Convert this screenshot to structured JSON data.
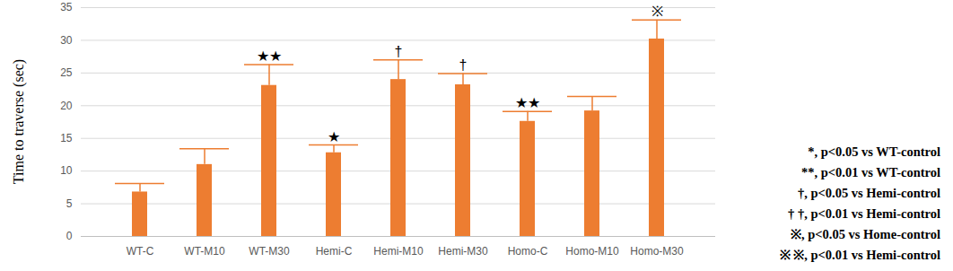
{
  "chart_data": {
    "type": "bar",
    "y_label": "Time to traverse (sec)",
    "categories": [
      "WT-C",
      "WT-M10",
      "WT-M30",
      "Hemi-C",
      "Hemi-M10",
      "Hemi-M30",
      "Homo-C",
      "Homo-M10",
      "Homo-M30"
    ],
    "values": [
      6.8,
      11.0,
      23.1,
      12.8,
      24.0,
      23.2,
      17.6,
      19.2,
      30.2
    ],
    "errors": [
      1.3,
      2.4,
      3.2,
      1.2,
      3.0,
      1.7,
      1.5,
      2.2,
      2.9
    ],
    "significance": [
      null,
      null,
      "★★",
      "★",
      "†",
      "†",
      "★★",
      null,
      "※"
    ],
    "color": "#ed7d31",
    "ylim": [
      0,
      35
    ],
    "yticks": [
      0,
      5,
      10,
      15,
      20,
      25,
      30,
      35
    ],
    "grid": true,
    "annotations": [
      "*, p<0.05 vs WT-control",
      "**, p<0.01 vs WT-control",
      "†, p<0.05 vs Hemi-control",
      "† †, p<0.01 vs Hemi-control",
      "※, p<0.05 vs Home-control",
      "※ ※, p<0.01 vs Hemi-control"
    ]
  }
}
